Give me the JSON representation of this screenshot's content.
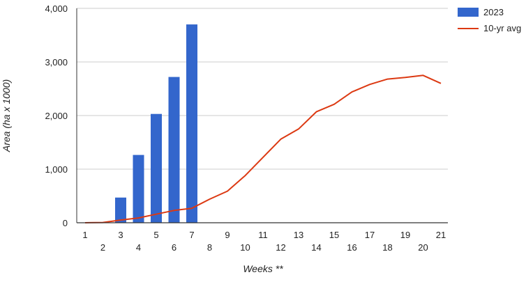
{
  "chart_data": {
    "type": "bar",
    "title": "",
    "xlabel": "Weeks **",
    "ylabel": "Area (ha x 1000)",
    "ylim": [
      0,
      4000
    ],
    "yticks": [
      0,
      1000,
      2000,
      3000,
      4000
    ],
    "ytick_labels": [
      "0",
      "1,000",
      "2,000",
      "3,000",
      "4,000"
    ],
    "categories": [
      "1",
      "2",
      "3",
      "4",
      "5",
      "6",
      "7",
      "8",
      "9",
      "10",
      "11",
      "12",
      "13",
      "14",
      "15",
      "16",
      "17",
      "18",
      "19",
      "20",
      "21"
    ],
    "grid": true,
    "legend_position": "right",
    "series": [
      {
        "name": "2023",
        "type": "bar",
        "color": "#3366cc",
        "values": [
          null,
          null,
          470,
          1265,
          2030,
          2720,
          3700,
          null,
          null,
          null,
          null,
          null,
          null,
          null,
          null,
          null,
          null,
          null,
          null,
          null,
          null
        ]
      },
      {
        "name": "10-yr avg",
        "type": "line",
        "color": "#dc3912",
        "values": [
          0,
          5,
          50,
          90,
          160,
          230,
          270,
          440,
          590,
          880,
          1220,
          1560,
          1750,
          2070,
          2210,
          2440,
          2580,
          2680,
          2710,
          2750,
          2600
        ]
      }
    ]
  }
}
